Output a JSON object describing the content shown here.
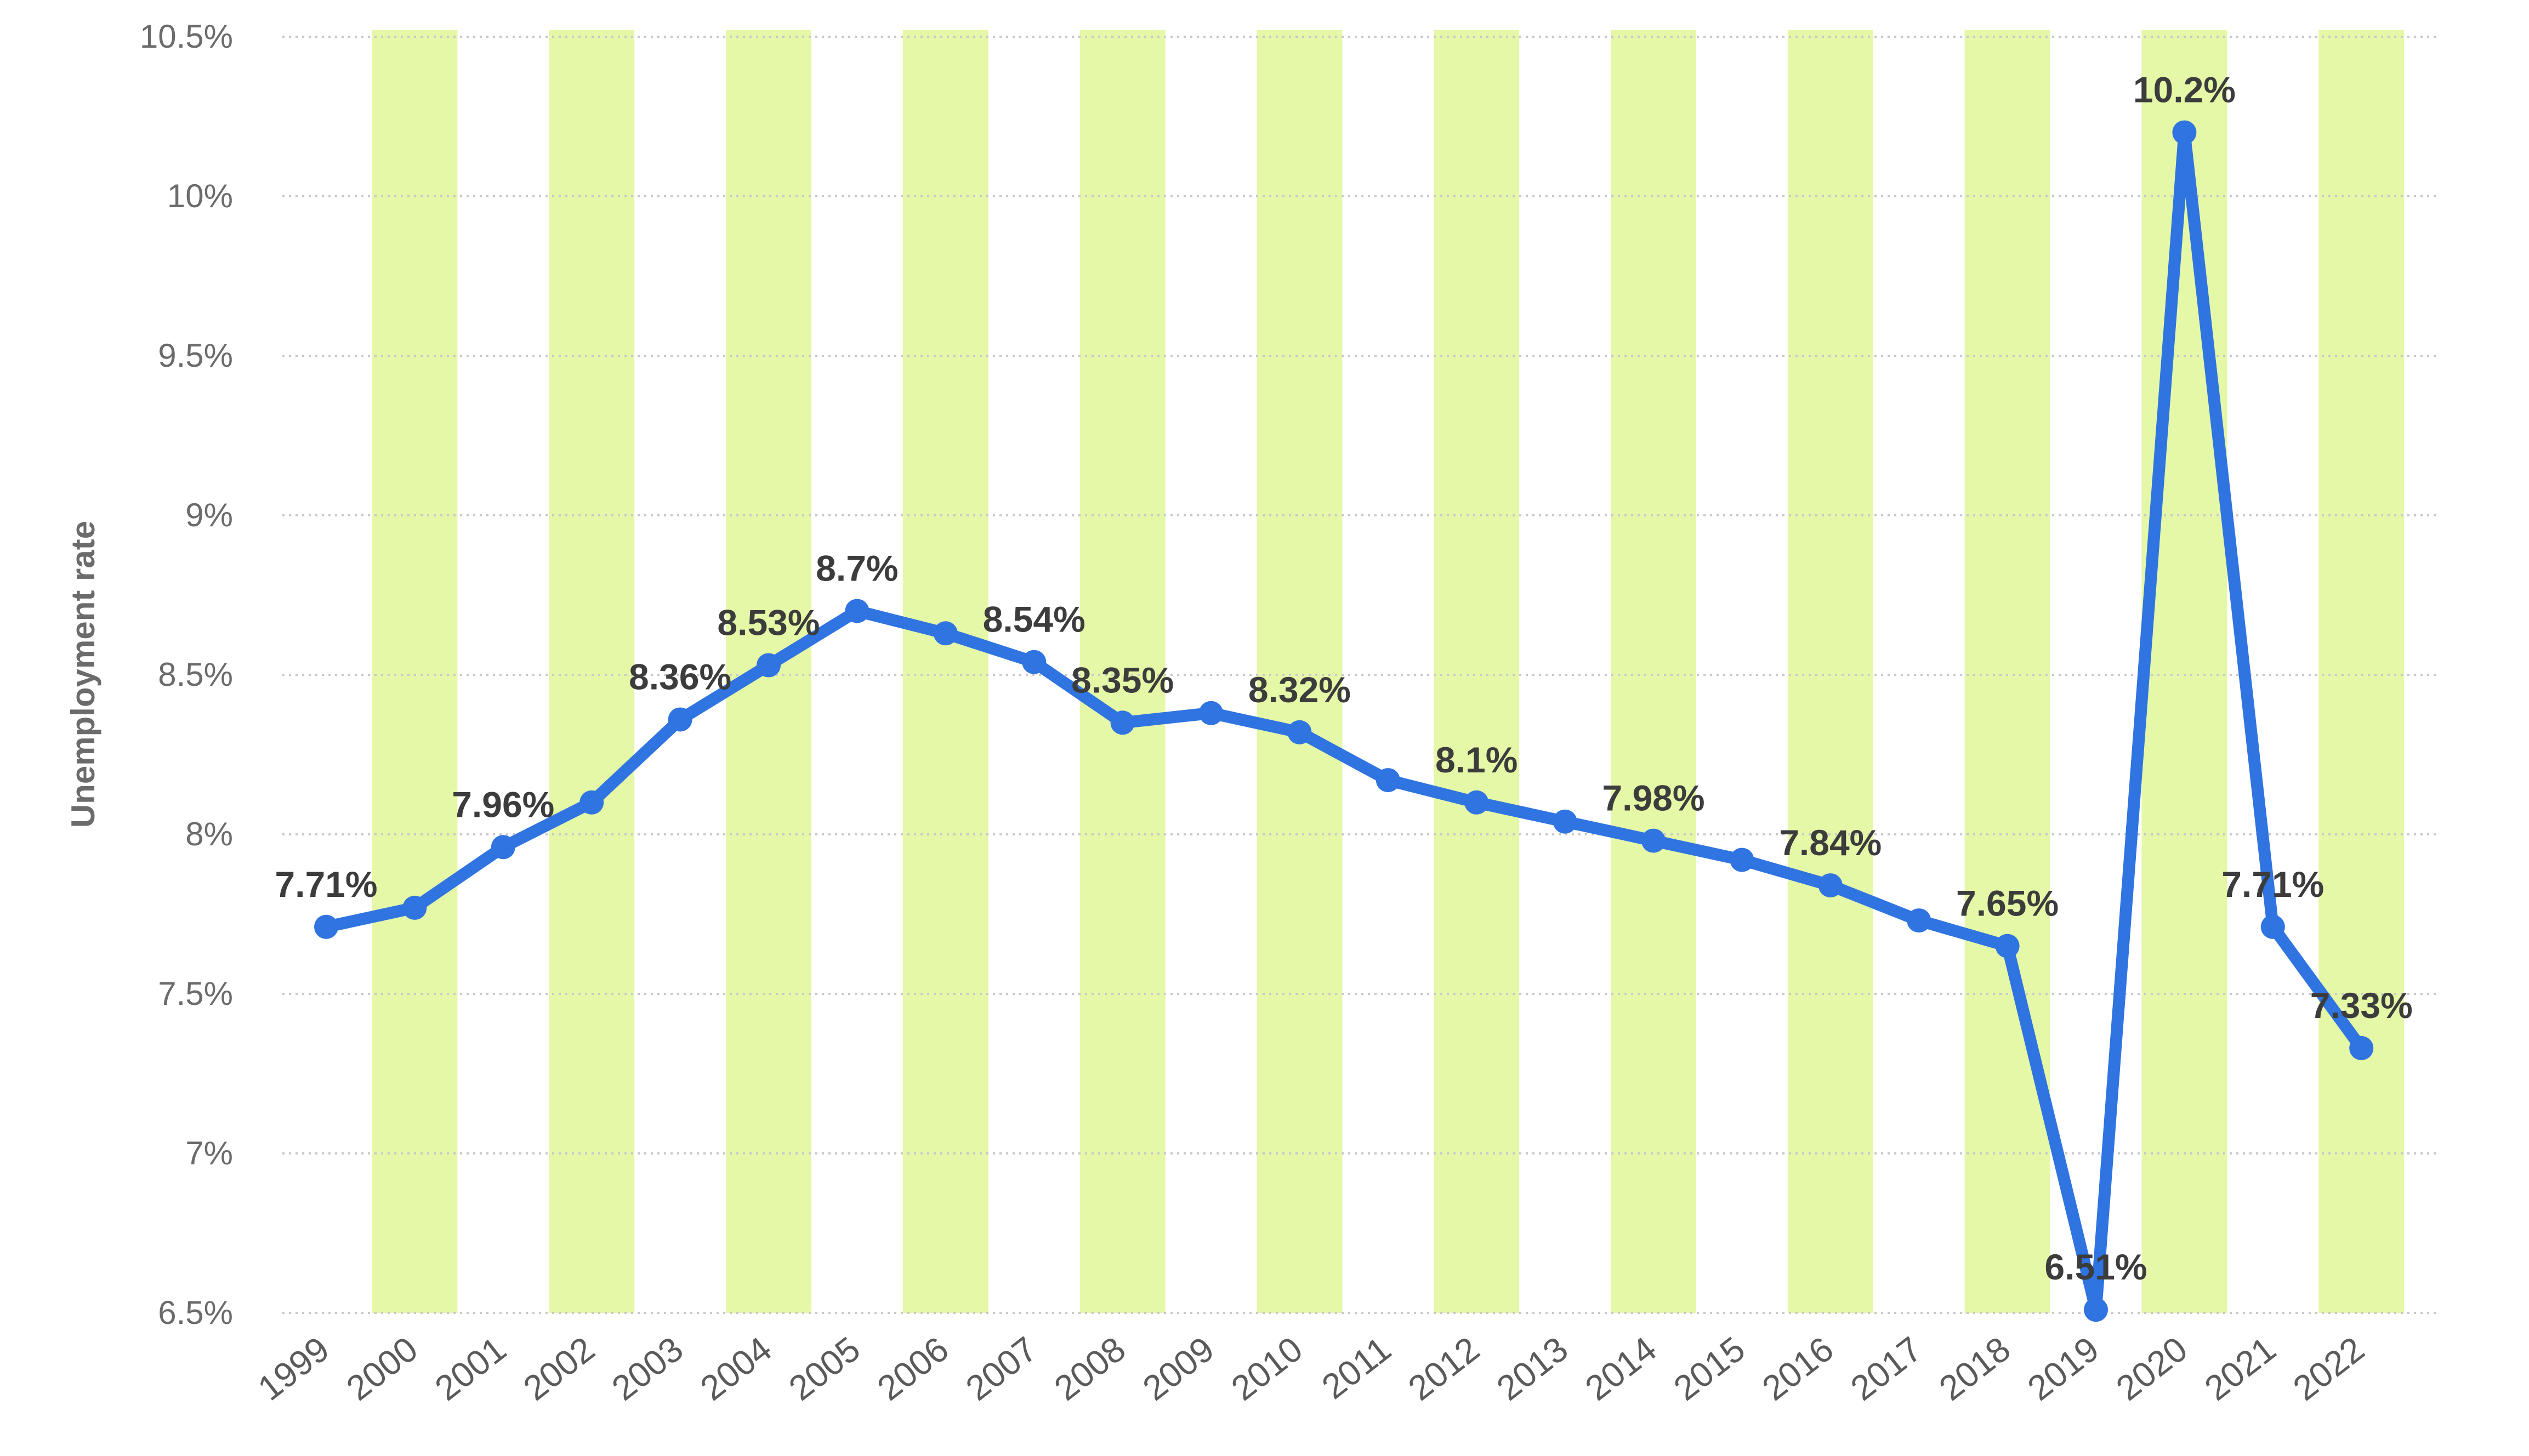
{
  "chart_data": {
    "type": "line",
    "title": "",
    "xlabel": "",
    "ylabel": "Unemployment rate",
    "ylim": [
      6.5,
      10.5
    ],
    "yticks": [
      6.5,
      7,
      7.5,
      8,
      8.5,
      9,
      9.5,
      10,
      10.5
    ],
    "ytick_labels": [
      "6.5%",
      "7%",
      "7.5%",
      "8%",
      "8.5%",
      "9%",
      "9.5%",
      "10%",
      "10.5%"
    ],
    "grid": true,
    "legend": "none",
    "categories": [
      "1999",
      "2000",
      "2001",
      "2002",
      "2003",
      "2004",
      "2005",
      "2006",
      "2007",
      "2008",
      "2009",
      "2010",
      "2011",
      "2012",
      "2013",
      "2014",
      "2015",
      "2016",
      "2017",
      "2018",
      "2019",
      "2020",
      "2021",
      "2022"
    ],
    "series": [
      {
        "values": [
          7.71,
          7.77,
          7.96,
          8.1,
          8.36,
          8.53,
          8.7,
          8.63,
          8.54,
          8.35,
          8.38,
          8.32,
          8.17,
          8.1,
          8.04,
          7.98,
          7.92,
          7.84,
          7.73,
          7.65,
          6.51,
          10.2,
          7.71,
          7.33
        ]
      }
    ],
    "data_labels": [
      {
        "index": 0,
        "text": "7.71%"
      },
      {
        "index": 2,
        "text": "7.96%"
      },
      {
        "index": 4,
        "text": "8.36%"
      },
      {
        "index": 5,
        "text": "8.53%"
      },
      {
        "index": 6,
        "text": "8.7%"
      },
      {
        "index": 8,
        "text": "8.54%"
      },
      {
        "index": 9,
        "text": "8.35%"
      },
      {
        "index": 11,
        "text": "8.32%"
      },
      {
        "index": 13,
        "text": "8.1%"
      },
      {
        "index": 15,
        "text": "7.98%"
      },
      {
        "index": 17,
        "text": "7.84%"
      },
      {
        "index": 19,
        "text": "7.65%"
      },
      {
        "index": 20,
        "text": "6.51%"
      },
      {
        "index": 21,
        "text": "10.2%"
      },
      {
        "index": 22,
        "text": "7.71%"
      },
      {
        "index": 23,
        "text": "7.33%"
      }
    ],
    "colors": {
      "line": "#2f74e0",
      "band": "#e5f8a8",
      "grid": "#c9c9c9",
      "background": "#ffffff"
    }
  }
}
